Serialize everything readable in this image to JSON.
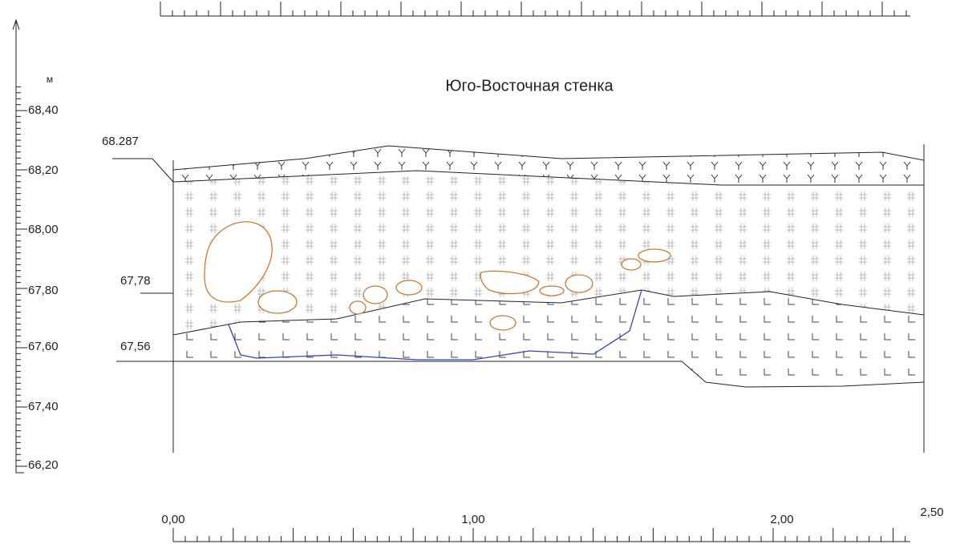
{
  "unit": "м",
  "title": "Юго-Восточная стенка",
  "y_axis": {
    "labels": [
      "68,40",
      "68,20",
      "68,00",
      "67,80",
      "67,60",
      "67,40",
      "66,20"
    ]
  },
  "levels": [
    "68.287",
    "67,78",
    "67,56"
  ],
  "x_axis": {
    "labels": [
      "0,00",
      "1,00",
      "2,00",
      "2,50"
    ]
  }
}
